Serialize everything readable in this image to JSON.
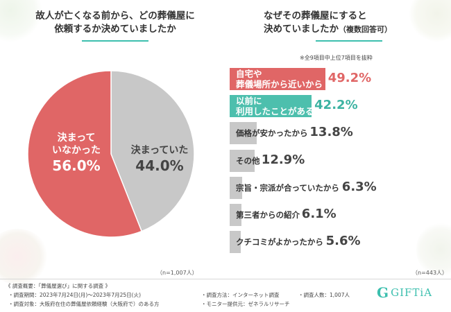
{
  "left": {
    "title_line1": "故人が亡くなる前から、どの葬儀屋に",
    "title_line2": "依頼するか決めていましたか",
    "n_note": "（n=1,007人）"
  },
  "right": {
    "title_line1": "なぜその葬儀屋にすると",
    "title_line2_main": "決めていましたか",
    "title_line2_sub": "（複数回答可）",
    "note": "※全9項目中上位7項目を抜粋",
    "n_note": "（n=443人）"
  },
  "colors": {
    "red": "#e06666",
    "teal": "#4dbfad",
    "grey": "#c8c8c8",
    "value_red": "#e06666",
    "value_teal": "#3cb3a2",
    "value_grey": "#444444",
    "accent": "#3cbfae"
  },
  "chart_data": [
    {
      "type": "pie",
      "title": "故人が亡くなる前から、どの葬儀屋に依頼するか決めていましたか",
      "slices": [
        {
          "label_line1": "決まって",
          "label_line2": "いなかった",
          "value": 56.0,
          "display": "56.0%",
          "color": "#e06666"
        },
        {
          "label_line1": "決まっていた",
          "label_line2": "",
          "value": 44.0,
          "display": "44.0%",
          "color": "#c8c8c8"
        }
      ]
    },
    {
      "type": "bar",
      "orientation": "horizontal",
      "title": "なぜその葬儀屋にすると決めていましたか（複数回答可）",
      "xlim": [
        0,
        100
      ],
      "bars": [
        {
          "label_line1": "自宅や",
          "label_line2": "葬儀場所から近いから",
          "value": 49.2,
          "display": "49.2%",
          "style": "red"
        },
        {
          "label_line1": "以前に",
          "label_line2": "利用したことがあるから",
          "value": 42.2,
          "display": "42.2%",
          "style": "teal"
        },
        {
          "label_line1": "価格が安かったから",
          "label_line2": "",
          "value": 13.8,
          "display": "13.8%",
          "style": "grey"
        },
        {
          "label_line1": "その他",
          "label_line2": "",
          "value": 12.9,
          "display": "12.9%",
          "style": "grey"
        },
        {
          "label_line1": "宗旨・宗派が合っていたから",
          "label_line2": "",
          "value": 6.3,
          "display": "6.3%",
          "style": "grey"
        },
        {
          "label_line1": "第三者からの紹介",
          "label_line2": "",
          "value": 6.1,
          "display": "6.1%",
          "style": "grey"
        },
        {
          "label_line1": "クチコミがよかったから",
          "label_line2": "",
          "value": 5.6,
          "display": "5.6%",
          "style": "grey"
        }
      ]
    }
  ],
  "footer": {
    "heading": "《 調査概要：「葬儀屋選び」に関する調査 》",
    "period": "・調査期間：2023年7月24日(月)～2023年7月25日(火)",
    "target": "・調査対象：大阪府在住の葬儀屋依頼経験（大阪府で）のある方",
    "method": "・調査方法：インターネット調査",
    "monitor": "・モニター提供元：ゼネラルリサーチ",
    "count": "・調査人数：1,007人"
  },
  "logo": {
    "mark": "G",
    "text": "GIFTiA",
    "icon": "giftia-g-logo"
  }
}
